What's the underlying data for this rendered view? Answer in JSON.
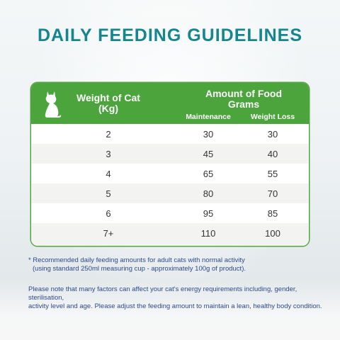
{
  "title": "DAILY FEEDING GUIDELINES",
  "table": {
    "header": {
      "weight_line1": "Weight of Cat",
      "weight_line2": "(Kg)",
      "amount_line1": "Amount of Food",
      "amount_line2": "Grams",
      "maintenance": "Maintenance",
      "weight_loss": "Weight Loss"
    },
    "rows": [
      {
        "weight": "2",
        "maintenance": "30",
        "weight_loss": "30"
      },
      {
        "weight": "3",
        "maintenance": "45",
        "weight_loss": "40"
      },
      {
        "weight": "4",
        "maintenance": "65",
        "weight_loss": "55"
      },
      {
        "weight": "5",
        "maintenance": "80",
        "weight_loss": "70"
      },
      {
        "weight": "6",
        "maintenance": "95",
        "weight_loss": "85"
      },
      {
        "weight": "7+",
        "maintenance": "110",
        "weight_loss": "100"
      }
    ]
  },
  "footnote": {
    "line1": "* Recommended daily feeding amounts for adult cats with normal activity",
    "line2": "(using standard 250ml measuring cup - approximately 100g of product)."
  },
  "paragraph": {
    "line1": "Please note that many factors can affect your cat's energy requirements including, gender, sterilisation,",
    "line2": "activity level and age. Please adjust the feeding amount to maintain a lean, healthy body condition."
  },
  "icons": {
    "header": "cat-silhouette-icon"
  },
  "colors": {
    "title": "#15868f",
    "header_bg": "#4ca43c",
    "note_text": "#2c4a8a"
  }
}
